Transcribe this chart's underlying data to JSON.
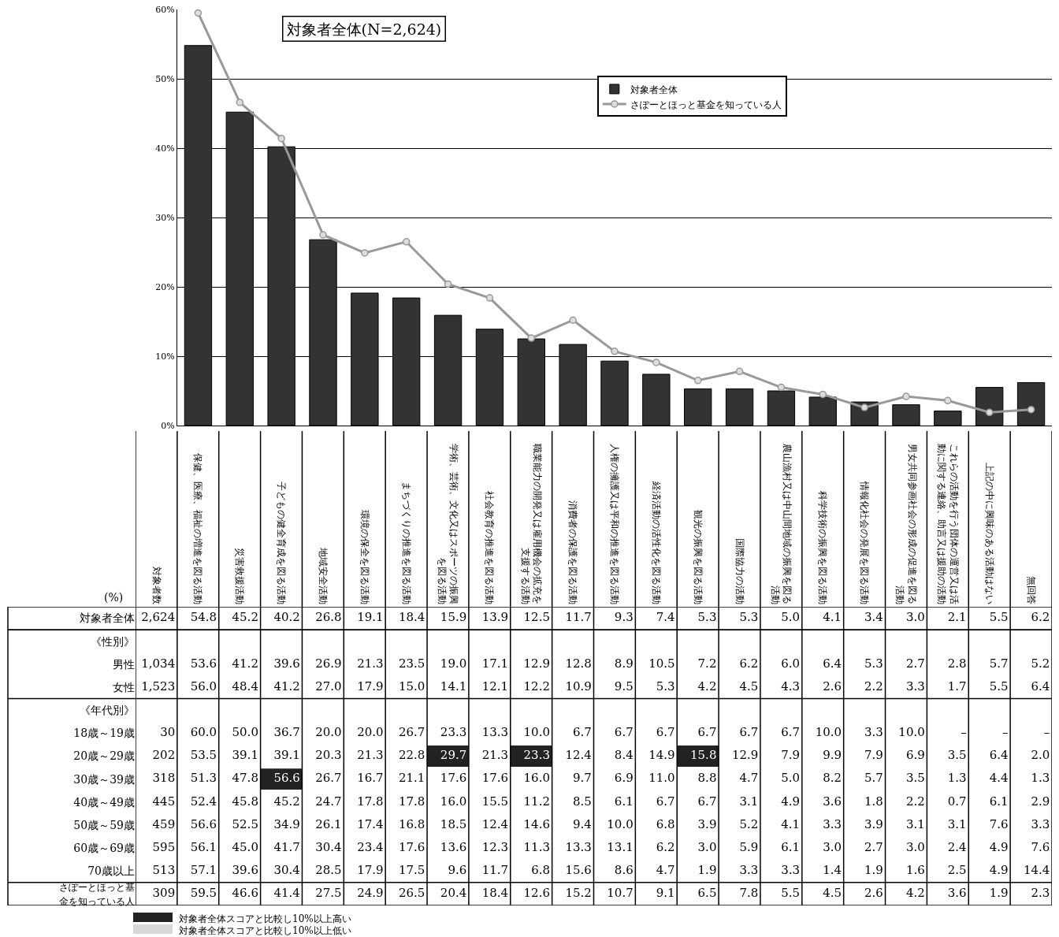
{
  "chart_data": [
    {
      "type": "bar",
      "title": "対象者全体(N=2,624)",
      "ylim": [
        0,
        60
      ],
      "yticks": [
        {
          "value": 0,
          "label": "0%"
        },
        {
          "value": 10,
          "label": "10%"
        },
        {
          "value": 20,
          "label": "20%"
        },
        {
          "value": 30,
          "label": "30%"
        },
        {
          "value": 40,
          "label": "40%"
        },
        {
          "value": 50,
          "label": "50%"
        },
        {
          "value": 60,
          "label": "60%"
        }
      ],
      "grid": "y",
      "legend": "top right",
      "tick_labels": "y",
      "marker": "circle",
      "categories": [
        "保健、医療、福祉の増進を図る活動",
        "災害救援活動",
        "子どもの健全育成を図る活動",
        "地域安全活動",
        "環境の保全を図る活動",
        "まちづくりの推進を図る活動",
        "学術、芸術、文化又はスポーツの振興を図る活動",
        "社会教育の推進を図る活動",
        "職業能力の開発又は雇用機会の拡充を支援する活動",
        "消費者の保護を図る活動",
        "人権の擁護又は平和の推進を図る活動",
        "経済活動の活性化を図る活動",
        "観光の振興を図る活動",
        "国際協力の活動",
        "農山漁村又は中山間地域の振興を図る活動",
        "科学技術の振興を図る活動",
        "情報化社会の発展を図る活動",
        "男女共同参画社会の形成の促進を図る活動",
        "これらの活動を行う団体の運営又は活動に関する連絡、助言又は援助の活動",
        "上記の中に興味のある活動はない",
        "無回答"
      ],
      "series": [
        {
          "name": "対象者全体",
          "type": "bar",
          "color": "#333333",
          "values": [
            54.8,
            45.2,
            40.2,
            26.8,
            19.1,
            18.4,
            15.9,
            13.9,
            12.5,
            11.7,
            9.3,
            7.4,
            5.3,
            5.3,
            5.0,
            4.1,
            3.4,
            3.0,
            2.1,
            5.5,
            6.2
          ]
        },
        {
          "name": "さぽーとほっと基金を知っている人",
          "type": "line",
          "color": "#999999",
          "values": [
            59.5,
            46.6,
            41.4,
            27.5,
            24.9,
            26.5,
            20.4,
            18.4,
            12.6,
            15.2,
            10.7,
            9.1,
            6.5,
            7.8,
            5.5,
            4.5,
            2.6,
            4.2,
            3.6,
            1.9,
            2.3
          ]
        }
      ]
    },
    {
      "type": "heatmap",
      "ylabel": "(%)",
      "grid": true,
      "categories": [
        "対象者数",
        "保健、医療、福祉の増進を図る活動",
        "災害救援活動",
        "子どもの健全育成を図る活動",
        "地域安全活動",
        "環境の保全を図る活動",
        "まちづくりの推進を図る活動",
        "学術、芸術、文化又はスポーツの振興を図る活動",
        "社会教育の推進を図る活動",
        "職業能力の開発又は雇用機会の拡充を支援する活動",
        "消費者の保護を図る活動",
        "人権の擁護又は平和の推進を図る活動",
        "経済活動の活性化を図る活動",
        "観光の振興を図る活動",
        "国際協力の活動",
        "農山漁村又は中山間地域の振興を図る活動",
        "科学技術の振興を図る活動",
        "情報化社会の発展を図る活動",
        "男女共同参画社会の形成の促進を図る活動",
        "これらの活動を行う団体の運営又は活動に関する連絡、助言又は援助の活動",
        "上記の中に興味のある活動はない",
        "無回答"
      ],
      "y_categories": [
        "対象者全体",
        "《性別》",
        "男性",
        "女性",
        "《年代別》",
        "18歳～19歳",
        "20歳～29歳",
        "30歳～39歳",
        "40歳～49歳",
        "50歳～59歳",
        "60歳～69歳",
        "70歳以上",
        "さぽーとほっと基金を知っている人"
      ],
      "cells": [
        [
          2624,
          54.8,
          45.2,
          40.2,
          26.8,
          19.1,
          18.4,
          15.9,
          13.9,
          12.5,
          11.7,
          9.3,
          7.4,
          5.3,
          5.3,
          5.0,
          4.1,
          3.4,
          3.0,
          2.1,
          5.5,
          6.2
        ],
        [
          null,
          null,
          null,
          null,
          null,
          null,
          null,
          null,
          null,
          null,
          null,
          null,
          null,
          null,
          null,
          null,
          null,
          null,
          null,
          null,
          null,
          null
        ],
        [
          1034,
          53.6,
          41.2,
          39.6,
          26.9,
          21.3,
          23.5,
          19.0,
          17.1,
          12.9,
          12.8,
          8.9,
          10.5,
          7.2,
          6.2,
          6.0,
          6.4,
          5.3,
          2.7,
          2.8,
          5.7,
          5.2
        ],
        [
          1523,
          56.0,
          48.4,
          41.2,
          27.0,
          17.9,
          15.0,
          14.1,
          12.1,
          12.2,
          10.9,
          9.5,
          5.3,
          4.2,
          4.5,
          4.3,
          2.6,
          2.2,
          3.3,
          1.7,
          5.5,
          6.4
        ],
        [
          null,
          null,
          null,
          null,
          null,
          null,
          null,
          null,
          null,
          null,
          null,
          null,
          null,
          null,
          null,
          null,
          null,
          null,
          null,
          null,
          null,
          null
        ],
        [
          30,
          60.0,
          50.0,
          36.7,
          20.0,
          20.0,
          26.7,
          23.3,
          13.3,
          10.0,
          6.7,
          6.7,
          6.7,
          6.7,
          6.7,
          6.7,
          10.0,
          3.3,
          10.0,
          null,
          null,
          null
        ],
        [
          202,
          53.5,
          39.1,
          39.1,
          20.3,
          21.3,
          22.8,
          29.7,
          21.3,
          23.3,
          12.4,
          8.4,
          14.9,
          15.8,
          12.9,
          7.9,
          9.9,
          7.9,
          6.9,
          3.5,
          6.4,
          2.0
        ],
        [
          318,
          51.3,
          47.8,
          56.6,
          26.7,
          16.7,
          21.1,
          17.6,
          17.6,
          16.0,
          9.7,
          6.9,
          11.0,
          8.8,
          4.7,
          5.0,
          8.2,
          5.7,
          3.5,
          1.3,
          4.4,
          1.3
        ],
        [
          445,
          52.4,
          45.8,
          45.2,
          24.7,
          17.8,
          17.8,
          16.0,
          15.5,
          11.2,
          8.5,
          6.1,
          6.7,
          6.7,
          3.1,
          4.9,
          3.6,
          1.8,
          2.2,
          0.7,
          6.1,
          2.9
        ],
        [
          459,
          56.6,
          52.5,
          34.9,
          26.1,
          17.4,
          16.8,
          18.5,
          12.4,
          14.6,
          9.4,
          10.0,
          6.8,
          3.9,
          5.2,
          4.1,
          3.3,
          3.9,
          3.1,
          3.1,
          7.6,
          3.3
        ],
        [
          595,
          56.1,
          45.0,
          41.7,
          30.4,
          23.4,
          17.6,
          13.6,
          12.3,
          11.3,
          13.3,
          13.1,
          6.2,
          3.0,
          5.9,
          6.1,
          3.0,
          2.7,
          3.0,
          2.4,
          4.9,
          7.6
        ],
        [
          513,
          57.1,
          39.6,
          30.4,
          28.5,
          17.9,
          17.5,
          9.6,
          11.7,
          6.8,
          15.6,
          8.6,
          4.7,
          1.9,
          3.3,
          3.3,
          1.4,
          1.9,
          1.6,
          2.5,
          4.9,
          14.4
        ],
        [
          309,
          59.5,
          46.6,
          41.4,
          27.5,
          24.9,
          26.5,
          20.4,
          18.4,
          12.6,
          15.2,
          10.7,
          9.1,
          6.5,
          7.8,
          5.5,
          4.5,
          2.6,
          4.2,
          3.6,
          1.9,
          2.3
        ]
      ],
      "cell_labels": [
        [
          "2,624",
          "54.8",
          "45.2",
          "40.2",
          "26.8",
          "19.1",
          "18.4",
          "15.9",
          "13.9",
          "12.5",
          "11.7",
          "9.3",
          "7.4",
          "5.3",
          "5.3",
          "5.0",
          "4.1",
          "3.4",
          "3.0",
          "2.1",
          "5.5",
          "6.2"
        ],
        [
          null,
          null,
          null,
          null,
          null,
          null,
          null,
          null,
          null,
          null,
          null,
          null,
          null,
          null,
          null,
          null,
          null,
          null,
          null,
          null,
          null,
          null
        ],
        [
          "1,034",
          "53.6",
          "41.2",
          "39.6",
          "26.9",
          "21.3",
          "23.5",
          "19.0",
          "17.1",
          "12.9",
          "12.8",
          "8.9",
          "10.5",
          "7.2",
          "6.2",
          "6.0",
          "6.4",
          "5.3",
          "2.7",
          "2.8",
          "5.7",
          "5.2"
        ],
        [
          "1,523",
          "56.0",
          "48.4",
          "41.2",
          "27.0",
          "17.9",
          "15.0",
          "14.1",
          "12.1",
          "12.2",
          "10.9",
          "9.5",
          "5.3",
          "4.2",
          "4.5",
          "4.3",
          "2.6",
          "2.2",
          "3.3",
          "1.7",
          "5.5",
          "6.4"
        ],
        [
          null,
          null,
          null,
          null,
          null,
          null,
          null,
          null,
          null,
          null,
          null,
          null,
          null,
          null,
          null,
          null,
          null,
          null,
          null,
          null,
          null,
          null
        ],
        [
          "30",
          "60.0",
          "50.0",
          "36.7",
          "20.0",
          "20.0",
          "26.7",
          "23.3",
          "13.3",
          "10.0",
          "6.7",
          "6.7",
          "6.7",
          "6.7",
          "6.7",
          "6.7",
          "10.0",
          "3.3",
          "10.0",
          "–",
          "–",
          "–"
        ],
        [
          "202",
          "53.5",
          "39.1",
          "39.1",
          "20.3",
          "21.3",
          "22.8",
          "29.7",
          "21.3",
          "23.3",
          "12.4",
          "8.4",
          "14.9",
          "15.8",
          "12.9",
          "7.9",
          "9.9",
          "7.9",
          "6.9",
          "3.5",
          "6.4",
          "2.0"
        ],
        [
          "318",
          "51.3",
          "47.8",
          "56.6",
          "26.7",
          "16.7",
          "21.1",
          "17.6",
          "17.6",
          "16.0",
          "9.7",
          "6.9",
          "11.0",
          "8.8",
          "4.7",
          "5.0",
          "8.2",
          "5.7",
          "3.5",
          "1.3",
          "4.4",
          "1.3"
        ],
        [
          "445",
          "52.4",
          "45.8",
          "45.2",
          "24.7",
          "17.8",
          "17.8",
          "16.0",
          "15.5",
          "11.2",
          "8.5",
          "6.1",
          "6.7",
          "6.7",
          "3.1",
          "4.9",
          "3.6",
          "1.8",
          "2.2",
          "0.7",
          "6.1",
          "2.9"
        ],
        [
          "459",
          "56.6",
          "52.5",
          "34.9",
          "26.1",
          "17.4",
          "16.8",
          "18.5",
          "12.4",
          "14.6",
          "9.4",
          "10.0",
          "6.8",
          "3.9",
          "5.2",
          "4.1",
          "3.3",
          "3.9",
          "3.1",
          "3.1",
          "7.6",
          "3.3"
        ],
        [
          "595",
          "56.1",
          "45.0",
          "41.7",
          "30.4",
          "23.4",
          "17.6",
          "13.6",
          "12.3",
          "11.3",
          "13.3",
          "13.1",
          "6.2",
          "3.0",
          "5.9",
          "6.1",
          "3.0",
          "2.7",
          "3.0",
          "2.4",
          "4.9",
          "7.6"
        ],
        [
          "513",
          "57.1",
          "39.6",
          "30.4",
          "28.5",
          "17.9",
          "17.5",
          "9.6",
          "11.7",
          "6.8",
          "15.6",
          "8.6",
          "4.7",
          "1.9",
          "3.3",
          "3.3",
          "1.4",
          "1.9",
          "1.6",
          "2.5",
          "4.9",
          "14.4"
        ],
        [
          "309",
          "59.5",
          "46.6",
          "41.4",
          "27.5",
          "24.9",
          "26.5",
          "20.4",
          "18.4",
          "12.6",
          "15.2",
          "10.7",
          "9.1",
          "6.5",
          "7.8",
          "5.5",
          "4.5",
          "2.6",
          "4.2",
          "3.6",
          "1.9",
          "2.3"
        ]
      ],
      "annotations": [
        "対象者全体スコアと比較し10%以上高い",
        "対象者全体スコアと比較し10%以上低い"
      ]
    }
  ]
}
